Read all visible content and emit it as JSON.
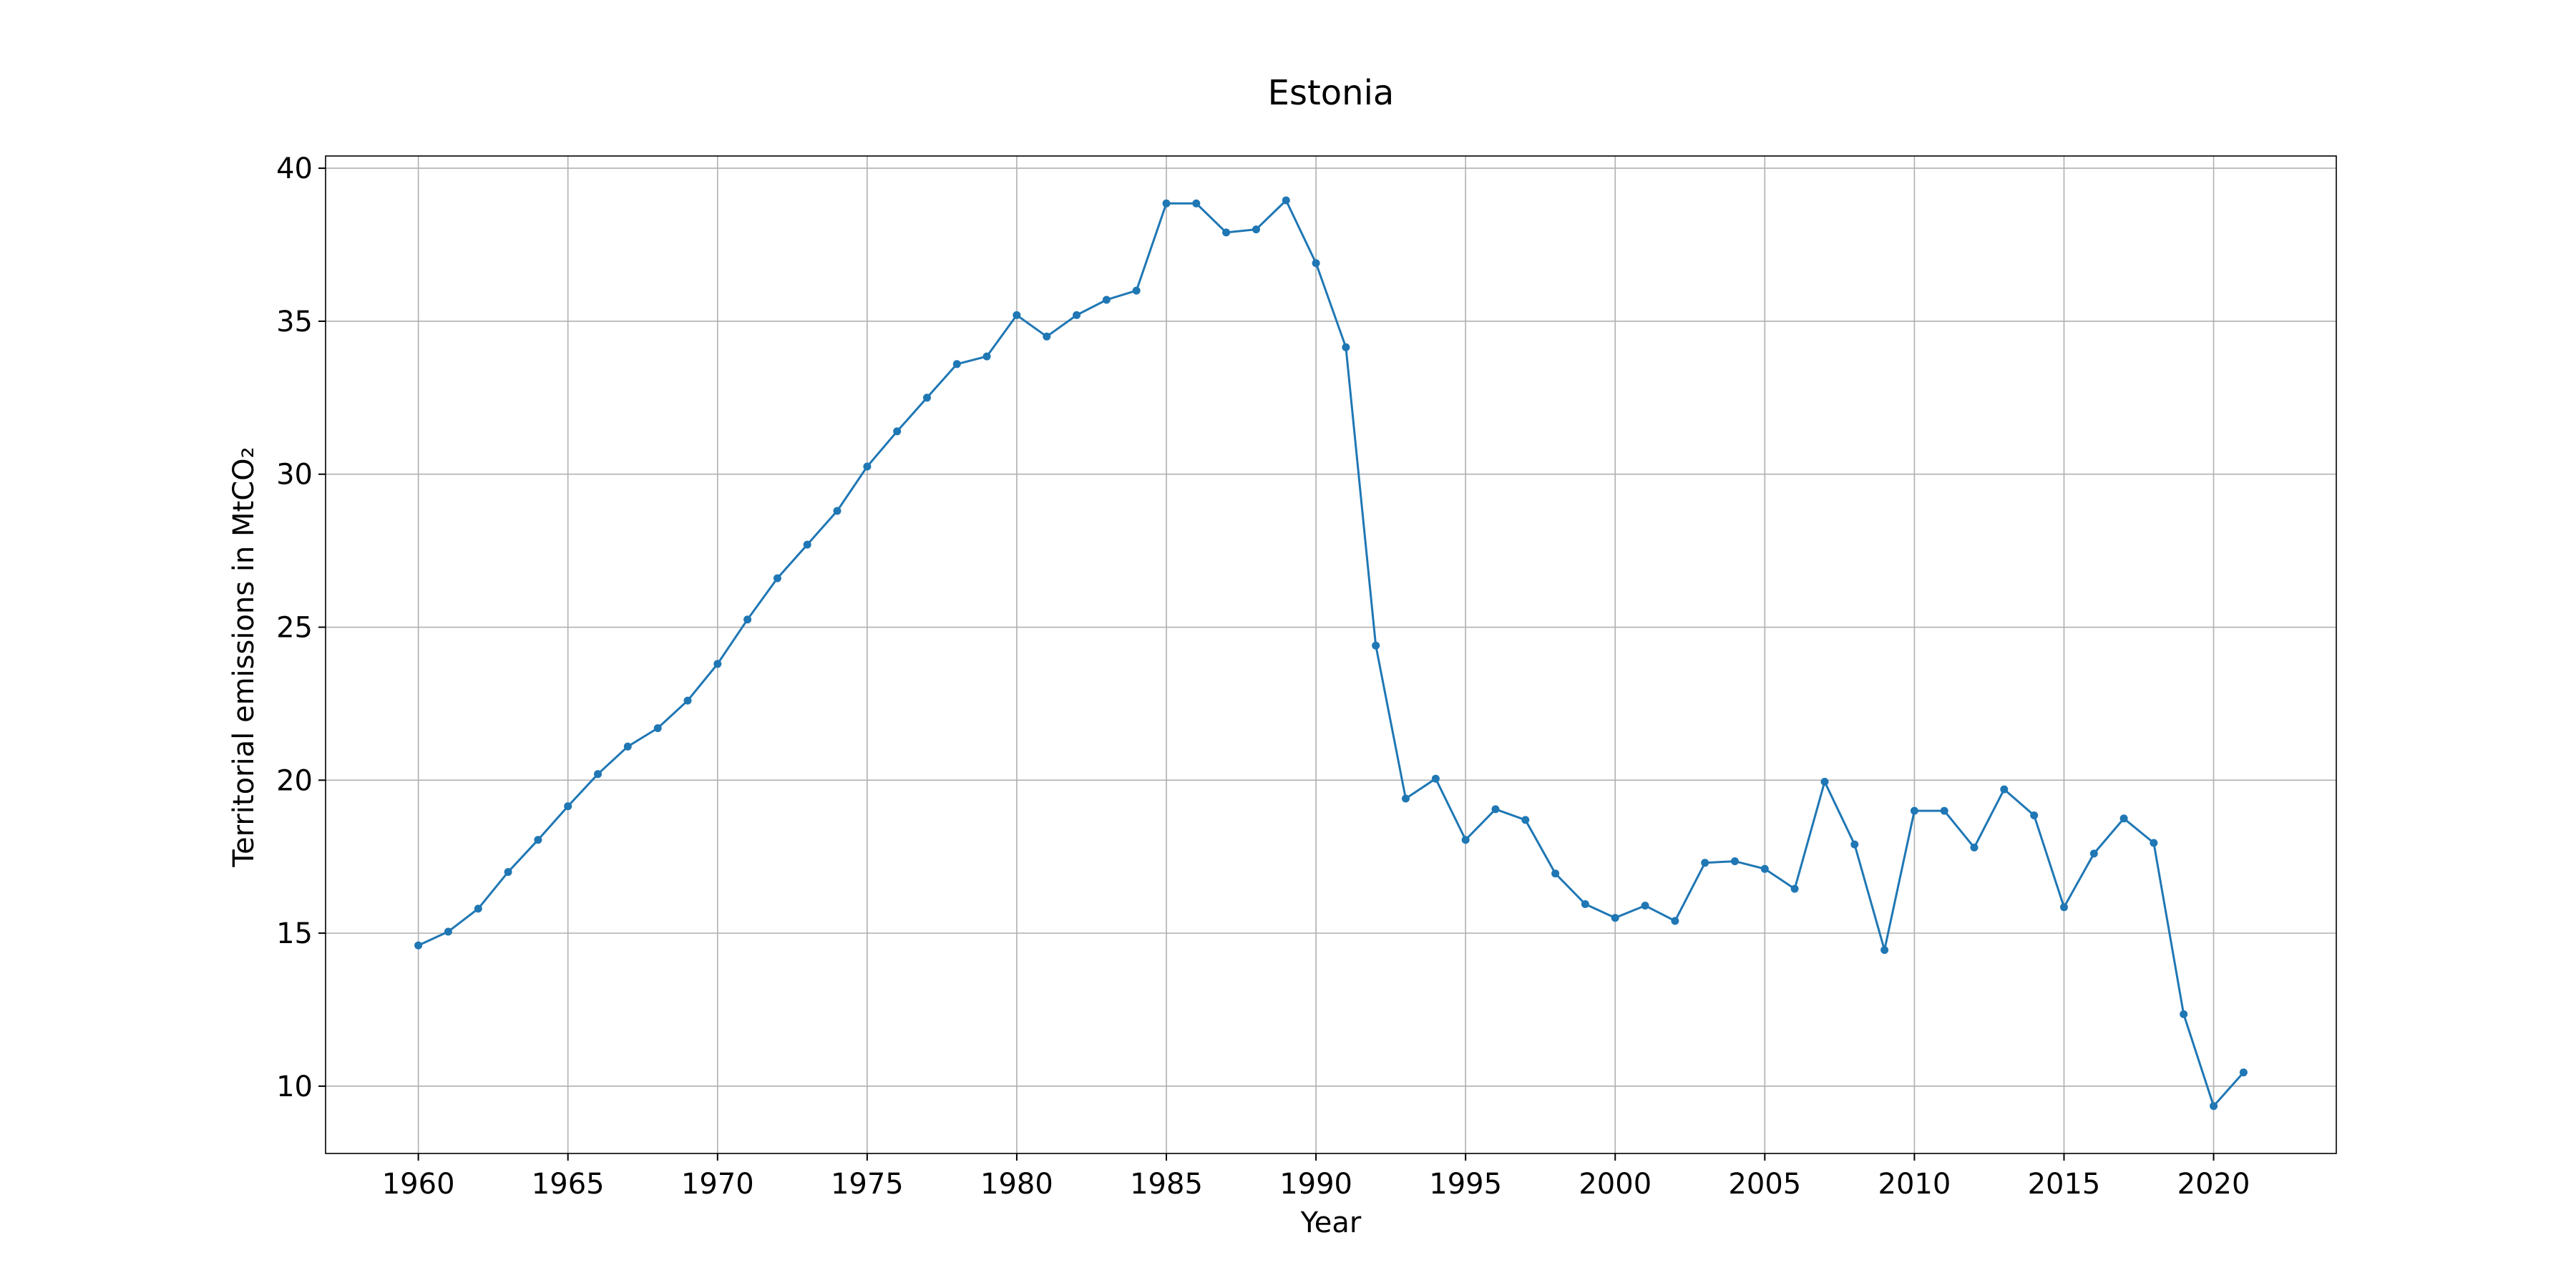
{
  "chart_data": {
    "type": "line",
    "title": "Estonia",
    "xlabel": "Year",
    "ylabel": "Territorial emissions in MtCO₂",
    "xlim": [
      1956.9,
      2024.1
    ],
    "ylim": [
      7.8,
      40.4
    ],
    "xticks": [
      1960,
      1965,
      1970,
      1975,
      1980,
      1985,
      1990,
      1995,
      2000,
      2005,
      2010,
      2015,
      2020
    ],
    "yticks": [
      10,
      15,
      20,
      25,
      30,
      35,
      40
    ],
    "grid": true,
    "legend": "none",
    "color": "#1f77b4",
    "series": [
      {
        "x": [
          1960,
          1961,
          1962,
          1963,
          1964,
          1965,
          1966,
          1967,
          1968,
          1969,
          1970,
          1971,
          1972,
          1973,
          1974,
          1975,
          1976,
          1977,
          1978,
          1979,
          1980,
          1981,
          1982,
          1983,
          1984,
          1985,
          1986,
          1987,
          1988,
          1989,
          1990,
          1991,
          1992,
          1993,
          1994,
          1995,
          1996,
          1997,
          1998,
          1999,
          2000,
          2001,
          2002,
          2003,
          2004,
          2005,
          2006,
          2007,
          2008,
          2009,
          2010,
          2011,
          2012,
          2013,
          2014,
          2015,
          2016,
          2017,
          2018,
          2019,
          2020,
          2021
        ],
        "y": [
          14.6,
          15.05,
          15.8,
          17.0,
          18.05,
          19.15,
          20.2,
          21.1,
          21.7,
          22.6,
          23.8,
          25.25,
          26.6,
          27.7,
          28.8,
          30.25,
          31.4,
          32.5,
          33.6,
          33.85,
          35.2,
          34.5,
          35.2,
          35.7,
          36.0,
          38.85,
          38.85,
          37.9,
          38.0,
          38.95,
          36.9,
          34.15,
          24.4,
          19.4,
          20.05,
          18.05,
          19.05,
          18.7,
          16.95,
          15.95,
          15.5,
          15.9,
          15.4,
          17.3,
          17.35,
          17.1,
          16.45,
          19.95,
          17.9,
          14.45,
          19.0,
          19.0,
          17.8,
          19.7,
          18.85,
          15.85,
          17.6,
          18.75,
          17.95,
          12.35,
          9.35,
          10.45
        ]
      }
    ]
  }
}
